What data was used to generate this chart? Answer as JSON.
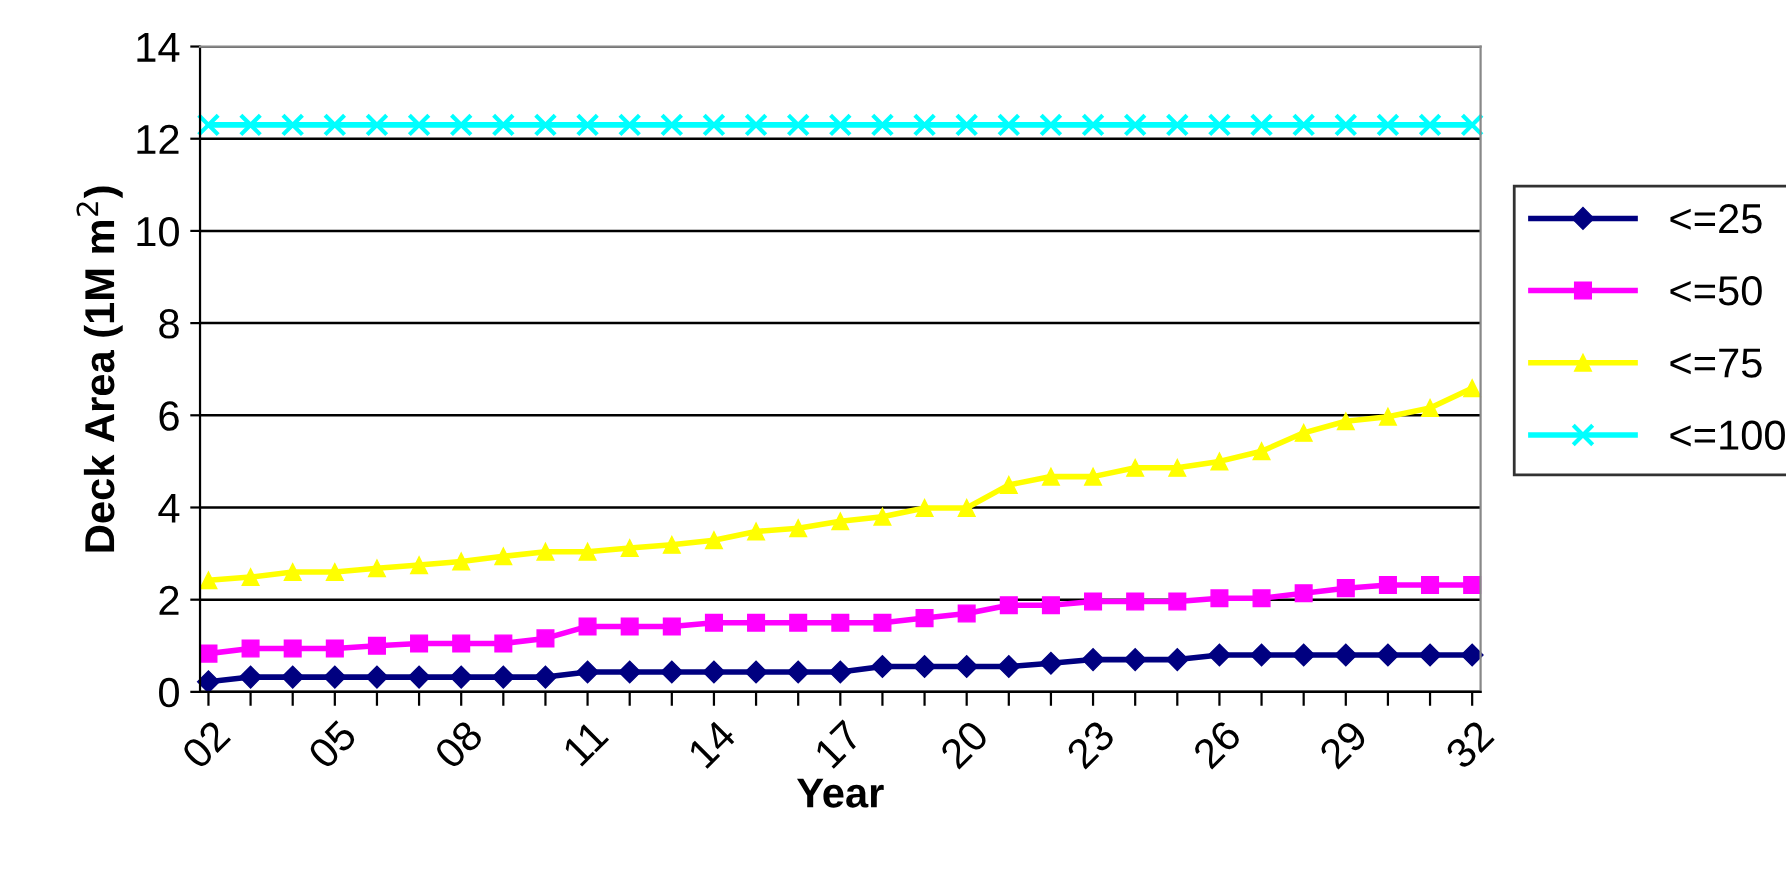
{
  "chart_data": {
    "type": "line",
    "xlabel": "Year",
    "ylabel": "Deck Area (1M m$^{2}$)",
    "categories": [
      "02",
      null,
      null,
      "05",
      null,
      null,
      "08",
      null,
      null,
      "11",
      null,
      null,
      "14",
      null,
      null,
      "17",
      null,
      null,
      "20",
      null,
      null,
      "23",
      null,
      null,
      "26",
      null,
      null,
      "29",
      null,
      null,
      "32"
    ],
    "series": [
      {
        "name": "<=25",
        "color": "#000080",
        "marker": "diamond",
        "values": [
          0.22,
          0.32,
          0.32,
          0.32,
          0.32,
          0.32,
          0.32,
          0.32,
          0.32,
          0.43,
          0.43,
          0.43,
          0.43,
          0.43,
          0.43,
          0.43,
          0.55,
          0.55,
          0.55,
          0.55,
          0.62,
          0.7,
          0.7,
          0.7,
          0.8,
          0.8,
          0.8,
          0.8,
          0.8,
          0.8,
          0.8
        ]
      },
      {
        "name": "<=50",
        "color": "#ff00ff",
        "marker": "square",
        "values": [
          0.83,
          0.94,
          0.94,
          0.94,
          1.0,
          1.05,
          1.05,
          1.05,
          1.16,
          1.42,
          1.42,
          1.42,
          1.5,
          1.5,
          1.5,
          1.5,
          1.5,
          1.6,
          1.7,
          1.88,
          1.88,
          1.96,
          1.96,
          1.96,
          2.03,
          2.03,
          2.14,
          2.25,
          2.32,
          2.32,
          2.32
        ]
      },
      {
        "name": "<=75",
        "color": "#ffff00",
        "marker": "triangle",
        "values": [
          2.42,
          2.49,
          2.6,
          2.6,
          2.68,
          2.75,
          2.83,
          2.94,
          3.04,
          3.04,
          3.12,
          3.19,
          3.29,
          3.48,
          3.55,
          3.7,
          3.8,
          3.99,
          3.99,
          4.49,
          4.67,
          4.67,
          4.86,
          4.86,
          5.0,
          5.22,
          5.62,
          5.87,
          5.97,
          6.16,
          6.59
        ]
      },
      {
        "name": "<=100",
        "color": "#00ffff",
        "marker": "cross",
        "values": [
          12.3,
          12.3,
          12.3,
          12.3,
          12.3,
          12.3,
          12.3,
          12.3,
          12.3,
          12.3,
          12.3,
          12.3,
          12.3,
          12.3,
          12.3,
          12.3,
          12.3,
          12.3,
          12.3,
          12.3,
          12.3,
          12.3,
          12.3,
          12.3,
          12.3,
          12.3,
          12.3,
          12.3,
          12.3,
          12.3,
          12.3
        ]
      }
    ],
    "ylim": [
      0,
      14
    ],
    "yticks": [
      0,
      2,
      4,
      6,
      8,
      10,
      12,
      14
    ],
    "grid": "y",
    "legend": "right"
  }
}
